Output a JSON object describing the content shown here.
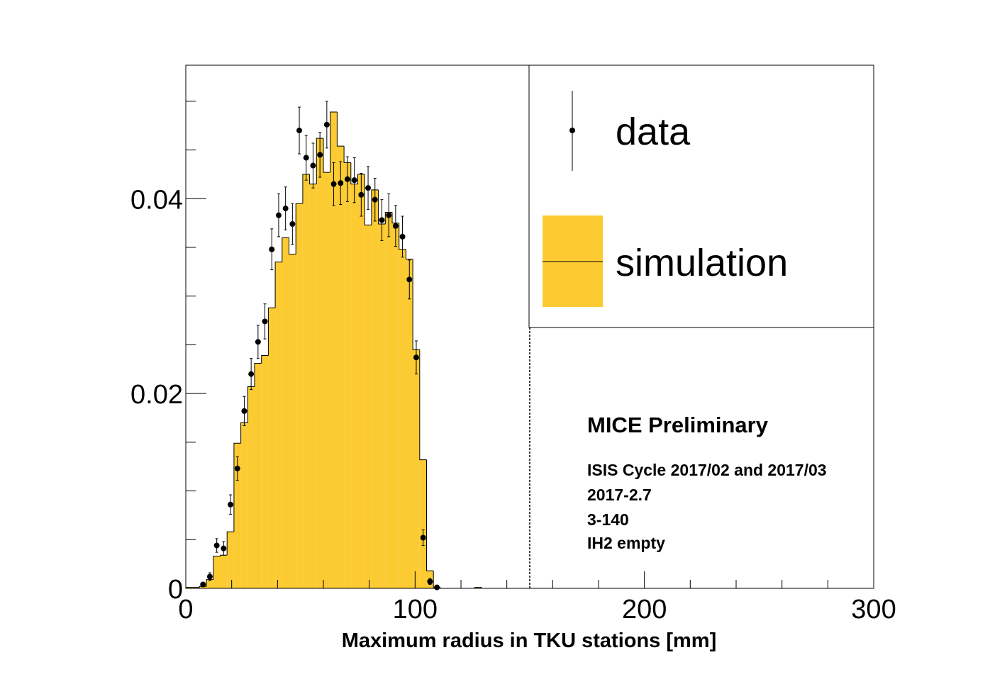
{
  "chart_data": {
    "type": "histogram",
    "x_label": "Maximum radius in TKU stations [mm]",
    "bins": [
      0,
      3,
      6,
      9,
      12,
      15,
      18,
      21,
      24,
      27,
      30,
      33,
      36,
      39,
      42,
      45,
      48,
      51,
      54,
      57,
      60,
      63,
      66,
      69,
      72,
      75,
      78,
      81,
      84,
      87,
      90,
      93,
      96,
      99,
      102,
      105,
      108,
      111,
      114,
      117,
      120,
      123,
      126,
      129
    ],
    "series": [
      {
        "name": "simulation",
        "color": "#fccb32",
        "values": [
          0.0001,
          0.0001,
          0.0002,
          0.0009,
          0.0033,
          0.0034,
          0.0058,
          0.0149,
          0.017,
          0.0207,
          0.0231,
          0.0239,
          0.0288,
          0.0335,
          0.036,
          0.0343,
          0.0395,
          0.0425,
          0.0415,
          0.0462,
          0.0427,
          0.0489,
          0.0454,
          0.0437,
          0.0415,
          0.0425,
          0.0373,
          0.0409,
          0.0374,
          0.0386,
          0.0375,
          0.0348,
          0.0338,
          0.0245,
          0.0132,
          0.0018,
          0.0001,
          0,
          0,
          0,
          0,
          0,
          0.0001
        ]
      },
      {
        "name": "data",
        "color": "#000000",
        "values": [
          null,
          null,
          0.0004,
          0.0012,
          0.0044,
          0.0041,
          0.0086,
          0.0123,
          0.0182,
          0.022,
          0.0253,
          0.0274,
          0.0348,
          0.0383,
          0.039,
          0.0374,
          0.047,
          0.0442,
          0.0434,
          0.0445,
          0.0476,
          0.0415,
          0.0416,
          0.042,
          0.0419,
          0.0404,
          0.0411,
          0.0399,
          0.0378,
          0.0383,
          0.0372,
          0.0361,
          0.0317,
          0.0237,
          0.0052,
          0.0007,
          0.0001,
          null,
          null,
          null,
          null,
          null,
          null
        ],
        "errors": [
          null,
          null,
          0.0002,
          0.0004,
          0.0007,
          0.0007,
          0.001,
          0.0012,
          0.0015,
          0.0016,
          0.0017,
          0.0018,
          0.0021,
          0.0022,
          0.0022,
          0.0021,
          0.0024,
          0.0023,
          0.0023,
          0.0023,
          0.0024,
          0.0022,
          0.0022,
          0.0023,
          0.0023,
          0.0022,
          0.0022,
          0.0022,
          0.0021,
          0.0022,
          0.0021,
          0.0021,
          0.002,
          0.0017,
          0.0008,
          0.0003,
          0.0001,
          null,
          null,
          null,
          null,
          null,
          null
        ]
      }
    ],
    "xlim": [
      0,
      300
    ],
    "ylim": [
      0,
      0.0537
    ],
    "xticks": [
      0,
      100,
      200,
      300
    ],
    "yticks": [
      0,
      0.02,
      0.04
    ],
    "xminorticks": [
      20,
      40,
      60,
      80,
      120,
      140,
      160,
      180,
      220,
      240,
      260,
      280
    ],
    "yminorticks": [
      0.005,
      0.01,
      0.015,
      0.025,
      0.03,
      0.035,
      0.045,
      0.05
    ],
    "vlines": [
      150
    ],
    "annotations": [
      "MICE Preliminary",
      "ISIS Cycle 2017/02 and 2017/03",
      "2017-2.7",
      "3-140",
      "IH2 empty"
    ]
  }
}
